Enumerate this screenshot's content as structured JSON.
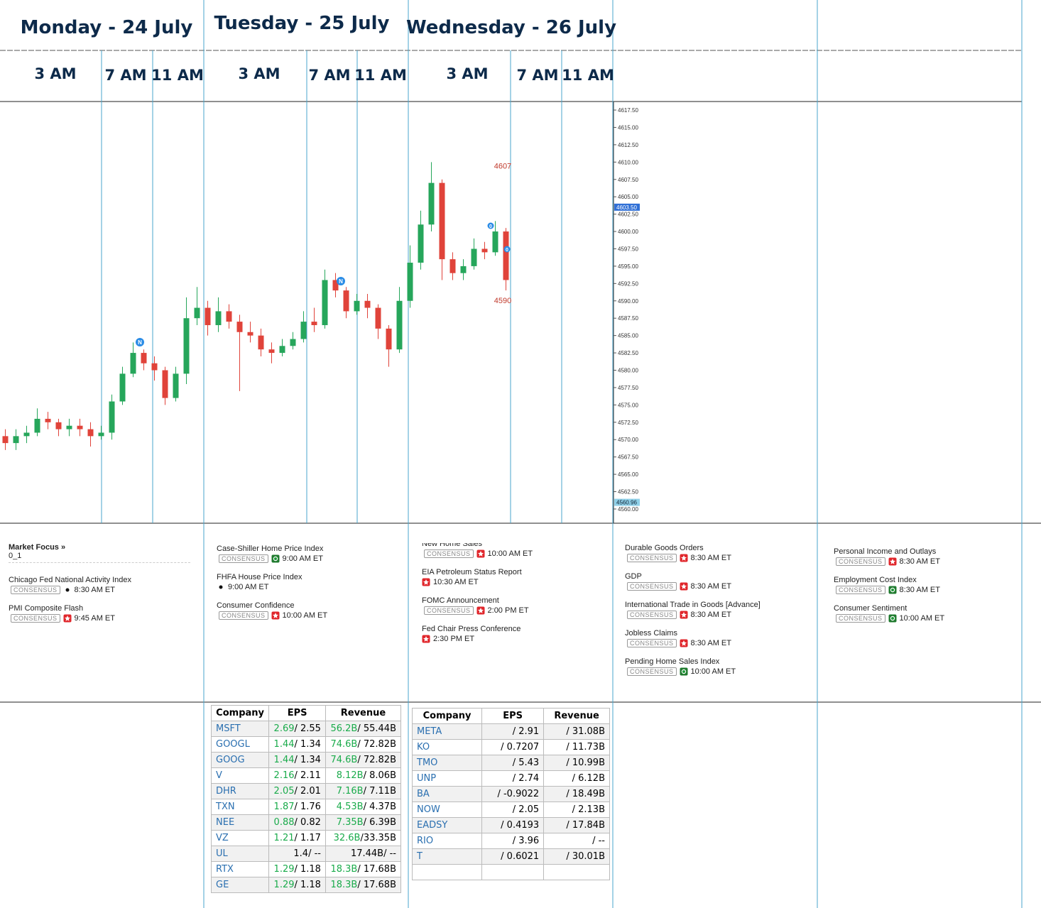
{
  "days": [
    {
      "title": "Monday - 24 July",
      "times": [
        "3 AM",
        "7 AM",
        "11 AM"
      ]
    },
    {
      "title": "Tuesday - 25 July",
      "times": [
        "3 AM",
        "7 AM",
        "11 AM"
      ]
    },
    {
      "title": "Wednesday - 26 July",
      "times": [
        "3 AM",
        "7 AM",
        "11 AM"
      ]
    }
  ],
  "chart_data": {
    "type": "candlestick",
    "up_color": "#26a65b",
    "down_color": "#e0433a",
    "ylim": [
      4557.95,
      4618.73
    ],
    "yticks": [
      {
        "value": 4617.5,
        "label": "4617.50"
      },
      {
        "value": 4615,
        "label": "4615.00"
      },
      {
        "value": 4612.5,
        "label": "4612.50"
      },
      {
        "value": 4610,
        "label": "4610.00"
      },
      {
        "value": 4607.5,
        "label": "4607.50"
      },
      {
        "value": 4605,
        "label": "4605.00"
      },
      {
        "value": 4602.5,
        "label": "4602.50"
      },
      {
        "value": 4600,
        "label": "4600.00"
      },
      {
        "value": 4597.5,
        "label": "4597.50"
      },
      {
        "value": 4595,
        "label": "4595.00"
      },
      {
        "value": 4592.5,
        "label": "4592.50"
      },
      {
        "value": 4590,
        "label": "4590.00"
      },
      {
        "value": 4587.5,
        "label": "4587.50"
      },
      {
        "value": 4585,
        "label": "4585.00"
      },
      {
        "value": 4582.5,
        "label": "4582.50"
      },
      {
        "value": 4580,
        "label": "4580.00"
      },
      {
        "value": 4577.5,
        "label": "4577.50"
      },
      {
        "value": 4575,
        "label": "4575.00"
      },
      {
        "value": 4572.5,
        "label": "4572.50"
      },
      {
        "value": 4570,
        "label": "4570.00"
      },
      {
        "value": 4567.5,
        "label": "4567.50"
      },
      {
        "value": 4565,
        "label": "4565.00"
      },
      {
        "value": 4562.5,
        "label": "4562.50"
      },
      {
        "value": 4560,
        "label": "4560.00"
      }
    ],
    "price_markers": [
      {
        "value": 4603.5,
        "label": "4603.50",
        "color": "#2f6fd6"
      },
      {
        "value": 4560.96,
        "label": "4560.96",
        "color": "#8fd0e8"
      }
    ],
    "annotations": [
      4607,
      4590
    ],
    "badges": [
      "N",
      "N",
      "0",
      "0"
    ],
    "open": [
      4570.5,
      4569.5,
      4570.5,
      4571,
      4573,
      4572.5,
      4571.5,
      4572,
      4571.5,
      4570.5,
      4571,
      4575.5,
      4579.5,
      4582.5,
      4581,
      4580,
      4576,
      4579.5,
      4587.5,
      4589,
      4586.5,
      4588.5,
      4587,
      4585.5,
      4585,
      4583,
      4582.5,
      4583.5,
      4584.5,
      4587,
      4586.5,
      4593,
      4591.5,
      4588.5,
      4590,
      4589,
      4586,
      4583,
      4590,
      4595.5,
      4601,
      4607,
      4596,
      4594,
      4595,
      4597.5,
      4597,
      4600
    ],
    "high": [
      4571.5,
      4571.5,
      4572,
      4574.5,
      4574,
      4573,
      4573,
      4573,
      4572.5,
      4572,
      4576.5,
      4580.5,
      4584,
      4583,
      4582,
      4580.5,
      4580.5,
      4590.5,
      4592,
      4590,
      4590.5,
      4589.5,
      4588,
      4587,
      4586,
      4584,
      4584.5,
      4585.5,
      4588.5,
      4589,
      4594.5,
      4594,
      4592,
      4591,
      4591,
      4589.5,
      4586.5,
      4592,
      4598,
      4603,
      4610,
      4607.5,
      4597,
      4596,
      4599,
      4598.5,
      4601.5,
      4600.5
    ],
    "low": [
      4568.5,
      4568.5,
      4569.5,
      4570.5,
      4571.5,
      4570.5,
      4570.5,
      4570.5,
      4569,
      4570,
      4570,
      4575,
      4579,
      4580,
      4578.5,
      4575,
      4575.5,
      4578,
      4586.5,
      4585,
      4585.5,
      4586,
      4577,
      4584,
      4582,
      4581,
      4582,
      4583,
      4584,
      4585.5,
      4586,
      4590.5,
      4587.5,
      4588,
      4587.5,
      4584.5,
      4580.5,
      4582.5,
      4589,
      4594.5,
      4600,
      4593,
      4593,
      4593,
      4594.5,
      4596,
      4596.5,
      4591.5
    ],
    "close": [
      4569.5,
      4570.5,
      4571,
      4573,
      4572.5,
      4571.5,
      4572,
      4571.5,
      4570.5,
      4571,
      4575.5,
      4579.5,
      4582.5,
      4581,
      4580,
      4576,
      4579.5,
      4587.5,
      4589,
      4586.5,
      4588.5,
      4587,
      4585.5,
      4585,
      4583,
      4582.5,
      4583.5,
      4584.5,
      4587,
      4586.5,
      4593,
      4591.5,
      4588.5,
      4590,
      4589,
      4586,
      4583,
      4590,
      4595.5,
      4601,
      4607,
      4596,
      4594,
      4595,
      4597.5,
      4597,
      4600,
      4593
    ]
  },
  "events": [
    {
      "heading": "Market Focus »",
      "subheading": "0_1",
      "items": [
        {
          "name": "Chicago Fed National Activity Index",
          "badge": "CONSENSUS",
          "importance": "low",
          "time": "8:30 AM ET"
        },
        {
          "name": "PMI Composite Flash",
          "badge": "CONSENSUS",
          "importance": "high",
          "time": "9:45 AM ET"
        }
      ]
    },
    {
      "items": [
        {
          "name": "Case-Shiller Home Price Index",
          "badge": "CONSENSUS",
          "importance": "medium",
          "time": "9:00 AM ET"
        },
        {
          "name": "FHFA House Price Index",
          "importance": "low",
          "time": "9:00 AM ET"
        },
        {
          "name": "Consumer Confidence",
          "badge": "CONSENSUS",
          "importance": "high",
          "time": "10:00 AM ET"
        }
      ]
    },
    {
      "items": [
        {
          "name": "New Home Sales",
          "badge": "CONSENSUS",
          "importance": "high",
          "time": "10:00 AM ET"
        },
        {
          "name": "EIA Petroleum Status Report",
          "importance": "high",
          "time": "10:30 AM ET"
        },
        {
          "name": "FOMC Announcement",
          "badge": "CONSENSUS",
          "importance": "high",
          "time": "2:00 PM ET"
        },
        {
          "name": "Fed Chair Press Conference",
          "importance": "high",
          "time": "2:30 PM ET"
        }
      ]
    },
    {
      "items": [
        {
          "name": "Durable Goods Orders",
          "badge": "CONSENSUS",
          "importance": "high",
          "time": "8:30 AM ET"
        },
        {
          "name": "GDP",
          "badge": "CONSENSUS",
          "importance": "high",
          "time": "8:30 AM ET"
        },
        {
          "name": "International Trade in Goods [Advance]",
          "badge": "CONSENSUS",
          "importance": "high",
          "time": "8:30 AM ET"
        },
        {
          "name": "Jobless Claims",
          "badge": "CONSENSUS",
          "importance": "high",
          "time": "8:30 AM ET"
        },
        {
          "name": "Pending Home Sales Index",
          "badge": "CONSENSUS",
          "importance": "medium",
          "time": "10:00 AM ET"
        }
      ]
    },
    {
      "items": [
        {
          "name": "Personal Income and Outlays",
          "badge": "CONSENSUS",
          "importance": "high",
          "time": "8:30 AM ET"
        },
        {
          "name": "Employment Cost Index",
          "badge": "CONSENSUS",
          "importance": "medium",
          "time": "8:30 AM ET"
        },
        {
          "name": "Consumer Sentiment",
          "badge": "CONSENSUS",
          "importance": "medium",
          "time": "10:00 AM ET"
        }
      ]
    }
  ],
  "earnings": [
    {
      "headers": [
        "Company",
        "EPS",
        "Revenue"
      ],
      "beat_color": "#1aab4b",
      "rows": [
        {
          "cells": [
            "MSFT",
            "2.69",
            "/ 2.55",
            "56.2B",
            "/ 55.44B"
          ],
          "beat": true
        },
        {
          "cells": [
            "GOOGL",
            "1.44",
            "/ 1.34",
            "74.6B",
            "/ 72.82B"
          ],
          "beat": true
        },
        {
          "cells": [
            "GOOG",
            "1.44",
            "/ 1.34",
            "74.6B",
            "/ 72.82B"
          ],
          "beat": true
        },
        {
          "cells": [
            "V",
            "2.16",
            "/ 2.11",
            "8.12B",
            "/ 8.06B"
          ],
          "beat": true
        },
        {
          "cells": [
            "DHR",
            "2.05",
            "/ 2.01",
            "7.16B",
            "/ 7.11B"
          ],
          "beat": true
        },
        {
          "cells": [
            "TXN",
            "1.87",
            "/ 1.76",
            "4.53B",
            "/ 4.37B"
          ],
          "beat": true
        },
        {
          "cells": [
            "NEE",
            "0.88",
            "/ 0.82",
            "7.35B",
            "/ 6.39B"
          ],
          "beat": true
        },
        {
          "cells": [
            "VZ",
            "1.21",
            "/ 1.17",
            "32.6B",
            "/33.35B"
          ],
          "beat": true
        },
        {
          "cells": [
            "UL",
            "1.4",
            "/ --",
            "17.44B",
            "/ --"
          ],
          "beat": false
        },
        {
          "cells": [
            "RTX",
            "1.29",
            "/ 1.18",
            "18.3B",
            "/ 17.68B"
          ],
          "beat": true
        },
        {
          "cells": [
            "GE",
            "1.29",
            "/ 1.18",
            "18.3B",
            "/ 17.68B"
          ],
          "beat": true
        }
      ]
    },
    {
      "headers": [
        "Company",
        "EPS",
        "Revenue"
      ],
      "rows": [
        {
          "cells": [
            "META",
            "/ 2.91",
            "/ 31.08B"
          ]
        },
        {
          "cells": [
            "KO",
            "/ 0.7207",
            "/ 11.73B"
          ]
        },
        {
          "cells": [
            "TMO",
            "/ 5.43",
            "/ 10.99B"
          ]
        },
        {
          "cells": [
            "UNP",
            "/ 2.74",
            "/ 6.12B"
          ]
        },
        {
          "cells": [
            "BA",
            "/ -0.9022",
            "/ 18.49B"
          ]
        },
        {
          "cells": [
            "NOW",
            "/ 2.05",
            "/ 2.13B"
          ]
        },
        {
          "cells": [
            "EADSY",
            "/ 0.4193",
            "/ 17.84B"
          ]
        },
        {
          "cells": [
            "RIO",
            "/ 3.96",
            "/ --"
          ]
        },
        {
          "cells": [
            "T",
            "/ 0.6021",
            "/ 30.01B"
          ]
        }
      ]
    }
  ]
}
